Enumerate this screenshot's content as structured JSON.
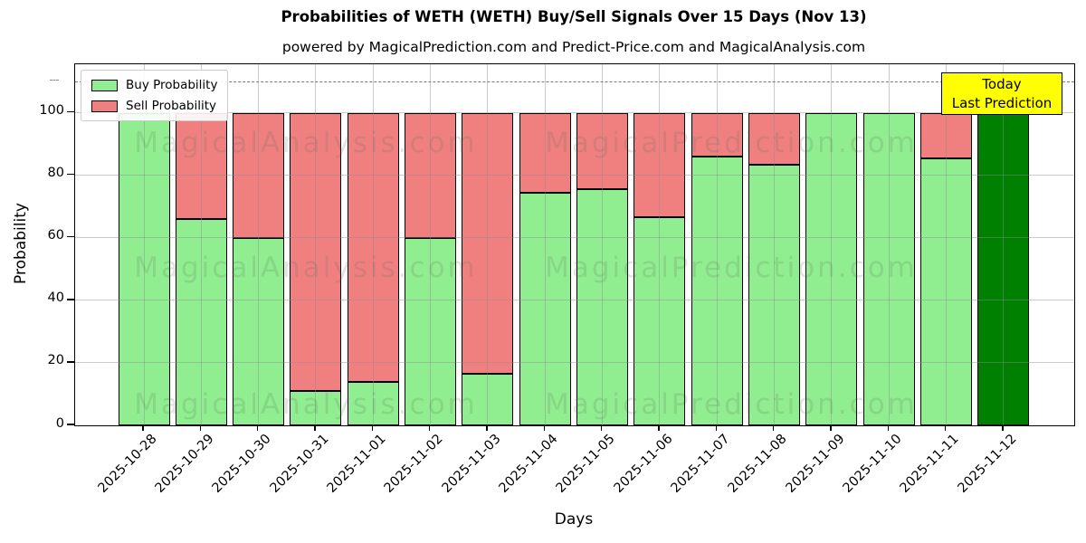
{
  "header": {
    "title": "Probabilities of WETH (WETH) Buy/Sell Signals Over 15 Days (Nov 13)",
    "subtitle": "powered by MagicalPrediction.com and Predict-Price.com and MagicalAnalysis.com"
  },
  "axes": {
    "xlabel": "Days",
    "ylabel": "Probability",
    "yticks": [
      0,
      20,
      40,
      60,
      80,
      100
    ]
  },
  "chart_data": {
    "type": "bar",
    "stacked": true,
    "title": "Probabilities of WETH (WETH) Buy/Sell Signals Over 15 Days (Nov 13)",
    "subtitle": "powered by MagicalPrediction.com and Predict-Price.com and MagicalAnalysis.com",
    "xlabel": "Days",
    "ylabel": "Probability",
    "ylim": [
      0,
      115.5
    ],
    "yticks": [
      0,
      20,
      40,
      60,
      80,
      100
    ],
    "grid": true,
    "legend_position": "upper-left",
    "dashed_line_y": 110,
    "categories": [
      "2025-10-28",
      "2025-10-29",
      "2025-10-30",
      "2025-10-31",
      "2025-11-01",
      "2025-11-02",
      "2025-11-03",
      "2025-11-04",
      "2025-11-05",
      "2025-11-06",
      "2025-11-07",
      "2025-11-08",
      "2025-11-09",
      "2025-11-10",
      "2025-11-11",
      "2025-11-12"
    ],
    "series": [
      {
        "name": "Buy Probability",
        "color": "#90EE90",
        "values": [
          100,
          66,
          60,
          11,
          14,
          60,
          16.5,
          74.5,
          75.5,
          66.5,
          86,
          83.5,
          100,
          100,
          85.5,
          100
        ]
      },
      {
        "name": "Sell Probability",
        "color": "#F08080",
        "values": [
          0,
          34,
          40,
          89,
          86,
          40,
          83.5,
          25.5,
          24.5,
          33.5,
          14,
          16.5,
          0,
          0,
          14.5,
          0
        ]
      }
    ],
    "today_bar": {
      "category": "2025-11-12",
      "color": "#008000",
      "value": 100
    }
  },
  "legend": {
    "items": [
      {
        "label": "Buy Probability",
        "color": "#90EE90"
      },
      {
        "label": "Sell Probability",
        "color": "#F08080"
      }
    ]
  },
  "annotation": {
    "line1": "Today",
    "line2": "Last Prediction",
    "bg": "#FFFF00"
  },
  "watermarks": {
    "left": "MagicalAnalysis.com",
    "right": "MagicalPrediction.com"
  }
}
